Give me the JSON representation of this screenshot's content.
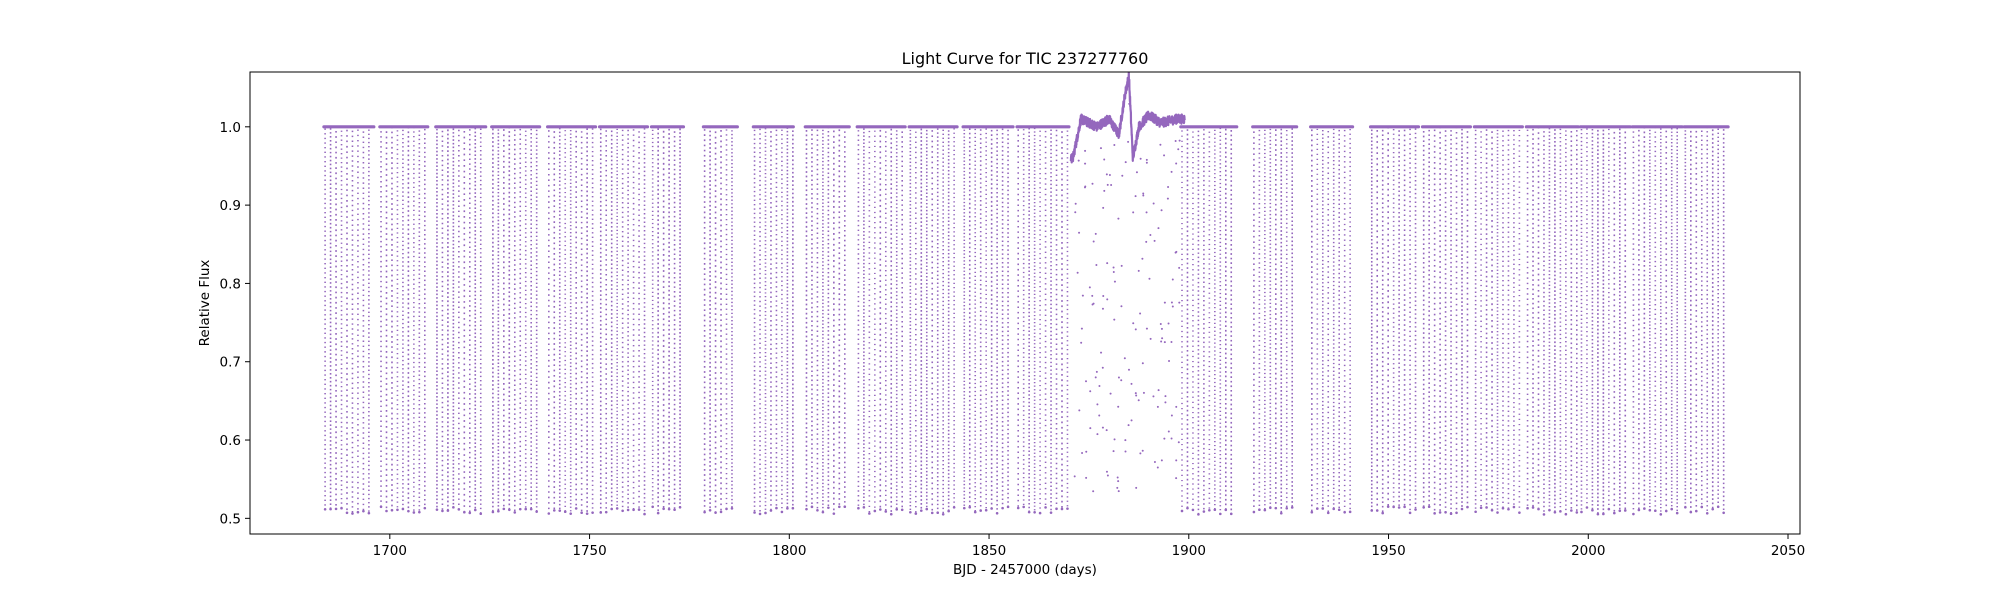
{
  "chart_data": {
    "type": "scatter",
    "title": "Light Curve for TIC 237277760",
    "xlabel": "BJD - 2457000 (days)",
    "ylabel": "Relative Flux",
    "xlim": [
      1665,
      2053
    ],
    "ylim": [
      0.48,
      1.07
    ],
    "xticks": [
      1700,
      1750,
      1800,
      1850,
      1900,
      1950,
      2000,
      2050
    ],
    "yticks": [
      0.5,
      0.6,
      0.7,
      0.8,
      0.9,
      1.0
    ],
    "grid": false,
    "legend": "none",
    "marker_color": "#9467bd",
    "baseline_flux": 1.0,
    "min_transit_flux": 0.51,
    "segments": [
      [
        1683.5,
        1696.0
      ],
      [
        1697.5,
        1709.5
      ],
      [
        1711.5,
        1724.0
      ],
      [
        1725.5,
        1737.5
      ],
      [
        1739.5,
        1751.5
      ],
      [
        1752.5,
        1764.5
      ],
      [
        1765.5,
        1773.5
      ],
      [
        1778.5,
        1787.0
      ],
      [
        1791.0,
        1801.0
      ],
      [
        1804.0,
        1815.0
      ],
      [
        1817.0,
        1829.0
      ],
      [
        1830.0,
        1842.0
      ],
      [
        1843.5,
        1856.0
      ],
      [
        1857.0,
        1870.0
      ],
      [
        1898.0,
        1912.0
      ],
      [
        1916.0,
        1927.0
      ],
      [
        1930.5,
        1941.0
      ],
      [
        1945.5,
        1957.5
      ],
      [
        1958.5,
        1970.5
      ],
      [
        1971.5,
        1983.5
      ],
      [
        1984.5,
        1997.5
      ],
      [
        1998.0,
        2010.5
      ],
      [
        2011.0,
        2023.5
      ],
      [
        2024.0,
        2035.0
      ]
    ],
    "transit_spacing_days": 1.37,
    "variable_segment": {
      "x_range": [
        1870.5,
        1899.0
      ],
      "features": [
        {
          "x": 1871.0,
          "y": 0.96
        },
        {
          "x": 1873.0,
          "y": 1.01
        },
        {
          "x": 1877.0,
          "y": 1.0
        },
        {
          "x": 1880.0,
          "y": 1.01
        },
        {
          "x": 1882.5,
          "y": 0.99
        },
        {
          "x": 1884.0,
          "y": 1.04
        },
        {
          "x": 1885.0,
          "y": 1.065
        },
        {
          "x": 1886.0,
          "y": 0.96
        },
        {
          "x": 1887.5,
          "y": 1.0
        },
        {
          "x": 1890.0,
          "y": 1.015
        },
        {
          "x": 1893.0,
          "y": 1.005
        },
        {
          "x": 1897.0,
          "y": 1.01
        }
      ]
    }
  }
}
